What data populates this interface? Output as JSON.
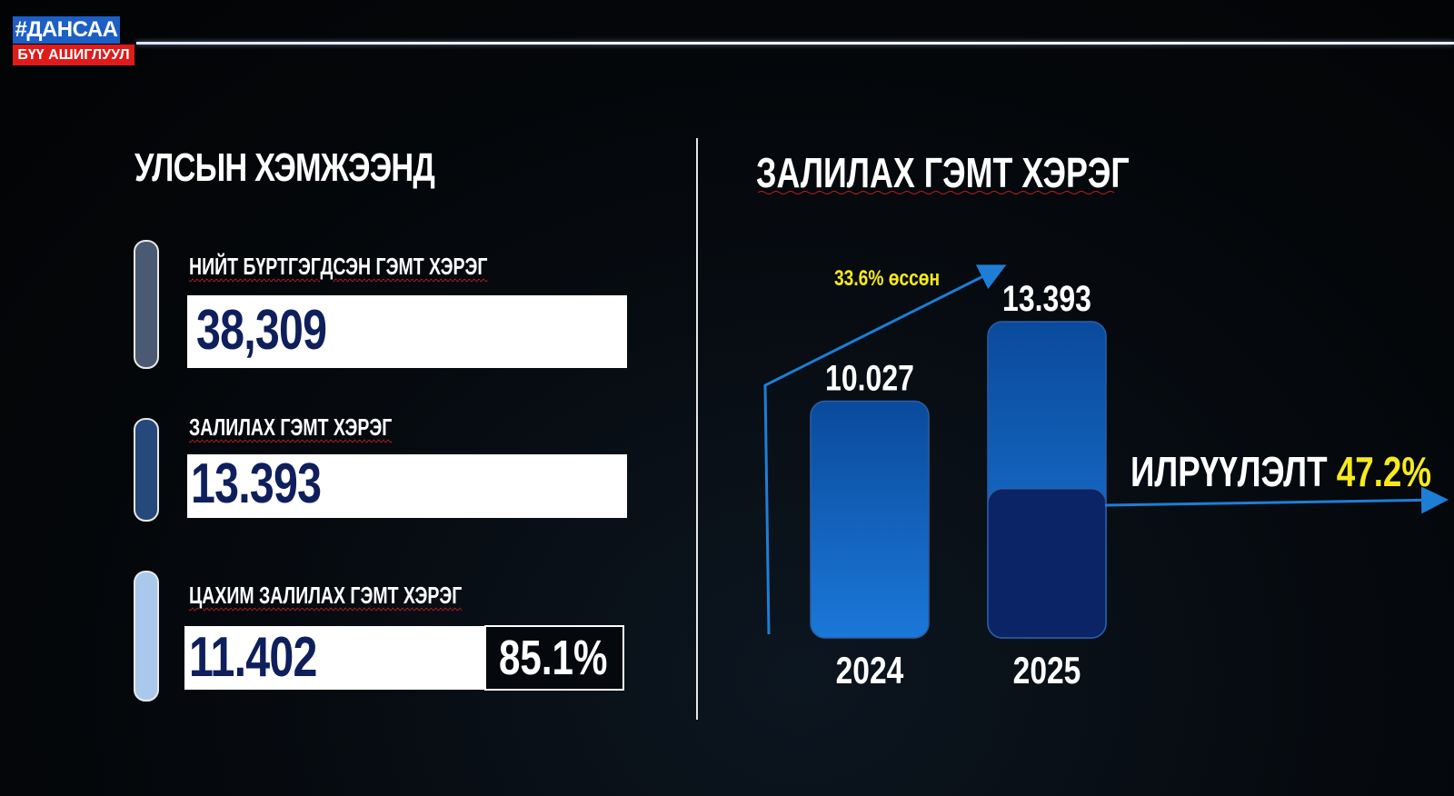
{
  "logo": {
    "hashtag": "#ДАНСАА",
    "subtitle": "БҮҮ АШИГЛУУЛ"
  },
  "left": {
    "title": "УЛСЫН ХЭМЖЭЭНД",
    "stats": [
      {
        "label": "НИЙТ БҮРТГЭГДСЭН ГЭМТ ХЭРЭГ",
        "value": "38,309",
        "color": "#4a5a72"
      },
      {
        "label": "ЗАЛИЛАХ ГЭМТ ХЭРЭГ",
        "value": "13.393",
        "color": "#24497a"
      },
      {
        "label": "ЦАХИМ ЗАЛИЛАХ ГЭМТ ХЭРЭГ",
        "value": "11.402",
        "percent": "85.1%",
        "color": "#a9c8ec"
      }
    ]
  },
  "chart_data": {
    "type": "bar",
    "title": "ЗАЛИЛАХ ГЭМТ ХЭРЭГ",
    "categories": [
      "2024",
      "2025"
    ],
    "values": [
      10027,
      13393
    ],
    "value_labels": [
      "10.027",
      "13.393"
    ],
    "detected_2025": 6322,
    "growth_annotation": "33.6% өссөн",
    "detection_label": "ИЛРҮҮЛЭЛТ",
    "detection_rate": "47.2%",
    "ylim": [
      0,
      16000
    ]
  },
  "colors": {
    "bar_top": "#0a4ea8",
    "bar_bottom": "#1a7fe0",
    "bar_detected": "#0b2466",
    "arrow": "#1e7ed6",
    "highlight": "#f6ea1c"
  }
}
